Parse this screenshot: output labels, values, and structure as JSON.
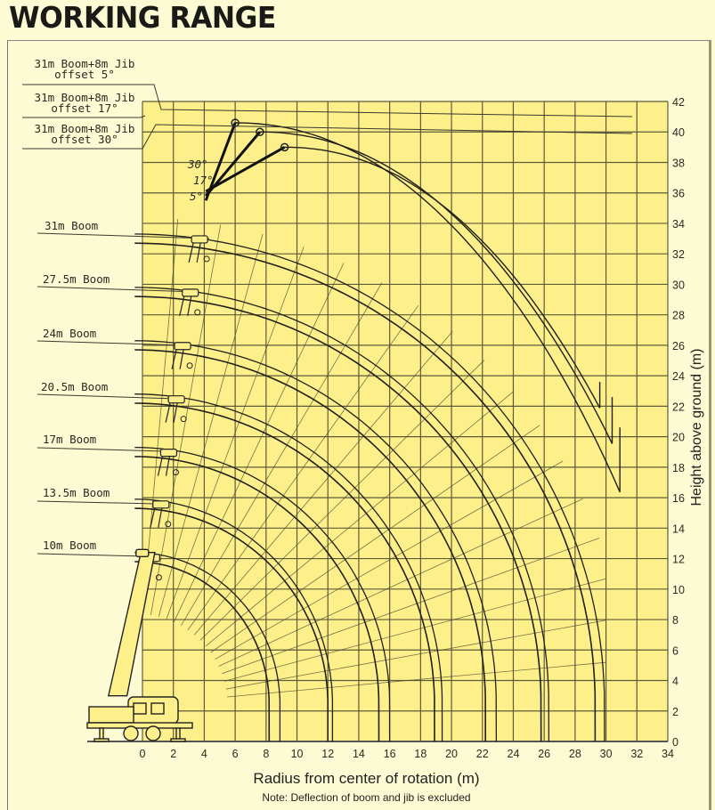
{
  "page": {
    "title": "WORKING RANGE",
    "xlabel": "Radius from center of rotation (m)",
    "ylabel": "Height above ground (m)",
    "note": "Note: Deflection of boom and jib is excluded"
  },
  "labels": {
    "jib5": [
      "31m Boom+8m Jib",
      "offset 5°"
    ],
    "jib17": [
      "31m Boom+8m Jib",
      "offset 17°"
    ],
    "jib30": [
      "31m Boom+8m Jib",
      "offset 30°"
    ],
    "b31": "31m Boom",
    "b275": "27.5m Boom",
    "b24": "24m Boom",
    "b205": "20.5m Boom",
    "b17": "17m Boom",
    "b135": "13.5m Boom",
    "b10": "10m Boom",
    "angle30": "30°",
    "angle17": "17°",
    "angle5": "5°"
  },
  "colors": {
    "plot_bg": "#fdf08a",
    "page_bg": "#fdfbd3",
    "grid": "#5e5a3a",
    "curve": "#222018"
  },
  "chart_data": {
    "type": "line",
    "title": "WORKING RANGE",
    "xlabel": "Radius from center of rotation (m)",
    "ylabel": "Height above ground (m)",
    "xlim": [
      0,
      34
    ],
    "ylim": [
      0,
      42
    ],
    "x_ticks": [
      0,
      2,
      4,
      6,
      8,
      10,
      12,
      14,
      16,
      18,
      20,
      22,
      24,
      26,
      28,
      30,
      32,
      34
    ],
    "y_ticks": [
      0,
      2,
      4,
      6,
      8,
      10,
      12,
      14,
      16,
      18,
      20,
      22,
      24,
      26,
      28,
      30,
      32,
      34,
      36,
      38,
      40,
      42
    ],
    "grid": true,
    "pivot": [
      -0.5,
      2.4
    ],
    "series": [
      {
        "name": "10m Boom",
        "max_height": 12.4,
        "max_radius_at_ground": [
          8.2,
          8.9
        ]
      },
      {
        "name": "13.5m Boom",
        "max_height": 15.9,
        "max_radius_at_ground": [
          12.0,
          12.3
        ]
      },
      {
        "name": "17m Boom",
        "max_height": 19.3,
        "max_radius_at_ground": [
          15.3,
          16.0
        ]
      },
      {
        "name": "20.5m Boom",
        "max_height": 22.8,
        "max_radius_at_ground": [
          18.9,
          19.4
        ]
      },
      {
        "name": "24m Boom",
        "max_height": 26.3,
        "max_radius_at_ground": [
          22.2,
          22.9
        ]
      },
      {
        "name": "27.5m Boom",
        "max_height": 29.8,
        "max_radius_at_ground": [
          25.8,
          26.3
        ]
      },
      {
        "name": "31m Boom",
        "max_height": 33.3,
        "max_radius_at_ground": [
          29.3,
          29.9
        ]
      },
      {
        "name": "31m Boom+8m Jib offset 5°",
        "max_height": 40.6,
        "tip_radius_at_max": 6.0,
        "end_point": [
          30.9,
          20.6
        ]
      },
      {
        "name": "31m Boom+8m Jib offset 17°",
        "max_height": 40.0,
        "tip_radius_at_max": 7.6,
        "end_point": [
          30.4,
          22.6
        ]
      },
      {
        "name": "31m Boom+8m Jib offset 30°",
        "max_height": 39.0,
        "tip_radius_at_max": 9.2,
        "end_point": [
          29.6,
          23.6
        ]
      }
    ],
    "legend_position": "left annotations"
  }
}
